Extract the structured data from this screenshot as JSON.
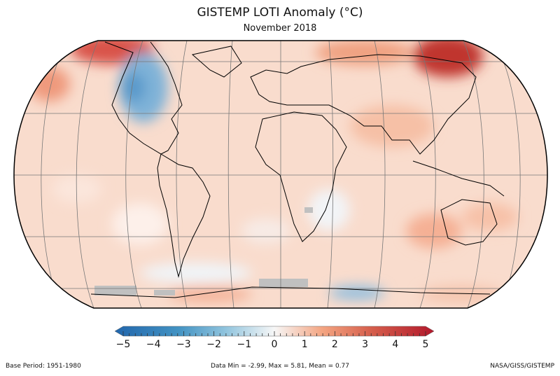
{
  "title": "GISTEMP LOTI Anomaly (°C)",
  "subtitle": "November 2018",
  "colorbar": {
    "ticks": [
      "−5",
      "−4",
      "−3",
      "−2",
      "−1",
      "0",
      "1",
      "2",
      "3",
      "4",
      "5"
    ],
    "range": [
      -5,
      5
    ],
    "colors": {
      "min": "#2166ac",
      "mid": "#f7f7f7",
      "max": "#b2182b",
      "nodata": "#c0c0c0"
    }
  },
  "footer": {
    "base_period": "Base Period: 1951-1980",
    "stats": "Data Min = -2.99, Max = 5.81, Mean = 0.77",
    "credit": "NASA/GISS/GISTEMP"
  }
}
